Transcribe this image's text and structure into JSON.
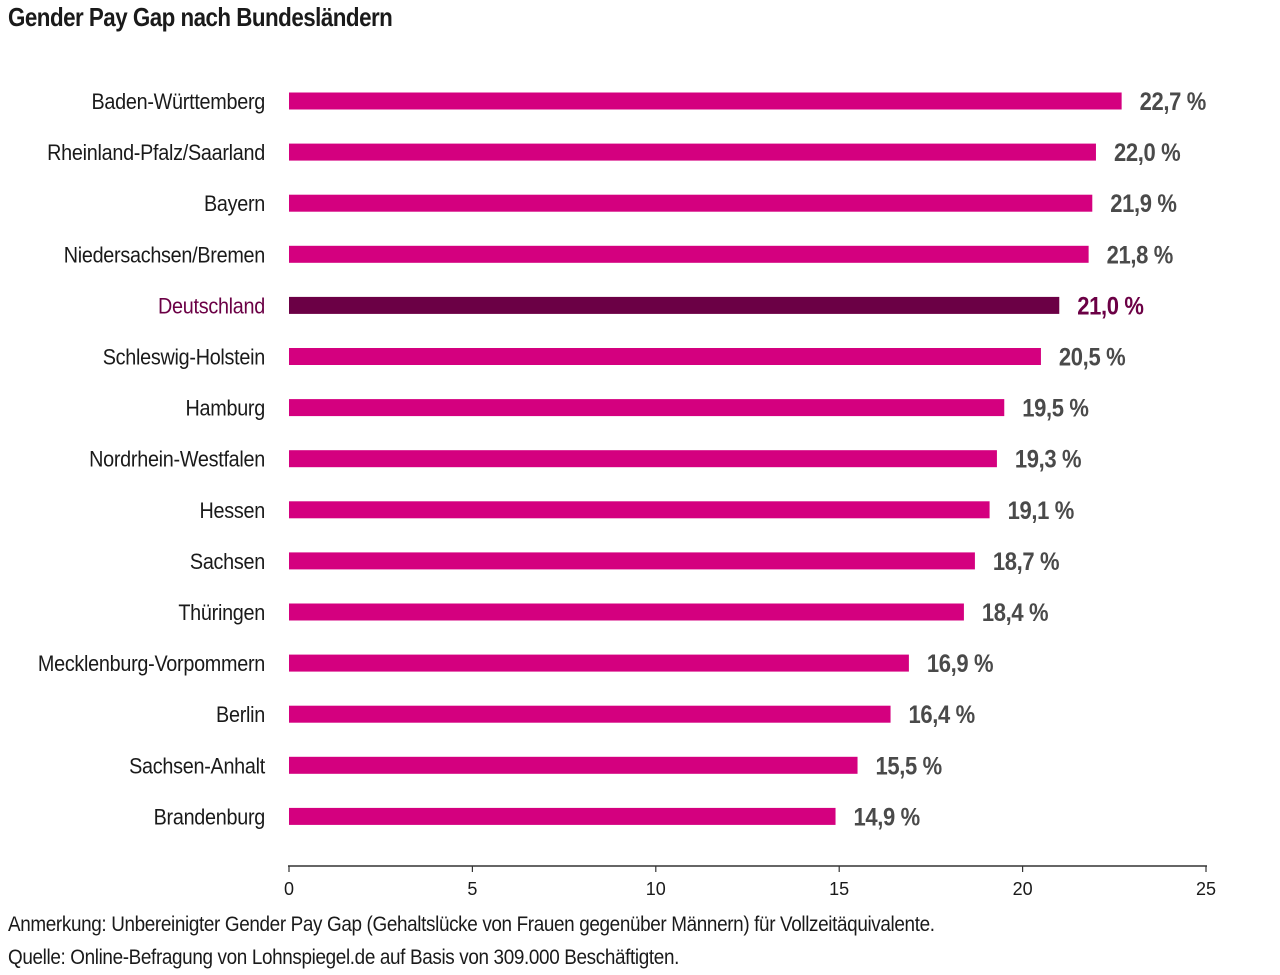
{
  "chart_data": {
    "type": "bar",
    "orientation": "horizontal",
    "title": "Gender Pay Gap nach Bundesländern",
    "categories": [
      "Baden-Württemberg",
      "Rheinland-Pfalz/Saarland",
      "Bayern",
      "Niedersachsen/Bremen",
      "Deutschland",
      "Schleswig-Holstein",
      "Hamburg",
      "Nordrhein-Westfalen",
      "Hessen",
      "Sachsen",
      "Thüringen",
      "Mecklenburg-Vorpommern",
      "Berlin",
      "Sachsen-Anhalt",
      "Brandenburg"
    ],
    "values": [
      22.7,
      22.0,
      21.9,
      21.8,
      21.0,
      20.5,
      19.5,
      19.3,
      19.1,
      18.7,
      18.4,
      16.9,
      16.4,
      15.5,
      14.9
    ],
    "value_labels": [
      "22,7 %",
      "22,0 %",
      "21,9 %",
      "21,8 %",
      "21,0 %",
      "20,5 %",
      "19,5 %",
      "19,3 %",
      "19,1 %",
      "18,7 %",
      "18,4 %",
      "16,9 %",
      "16,4 %",
      "15,5 %",
      "14,9 %"
    ],
    "highlight": "Deutschland",
    "xlim": [
      0,
      25
    ],
    "xticks": [
      0,
      5,
      10,
      15,
      20,
      25
    ],
    "xtick_labels": [
      "0",
      "5",
      "10",
      "15",
      "20",
      "25"
    ],
    "grid": false,
    "legend": "none",
    "colors": {
      "bar": "#d4007f",
      "highlight_bar": "#6b0045",
      "highlight_text": "#6b0045",
      "value_text": "#4a4a4a",
      "axis": "#333333"
    }
  },
  "footnotes": {
    "note": "Anmerkung: Unbereinigter Gender Pay Gap (Gehaltslücke von Frauen gegenüber Männern) für Vollzeitäquivalente.",
    "source": "Quelle: Online-Befragung von Lohnspiegel.de auf Basis von 309.000 Beschäftigten."
  }
}
